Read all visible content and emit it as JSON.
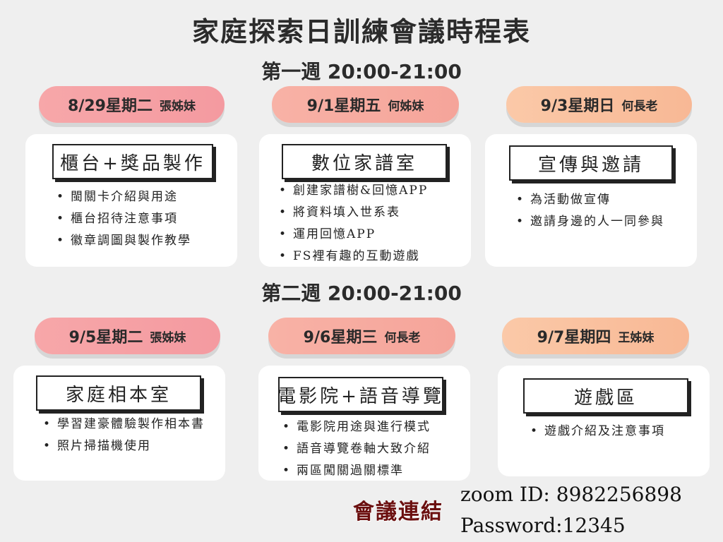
{
  "title": "家庭探索日訓練會議時程表",
  "weeks": [
    {
      "label": "第一週 20:00-21:00",
      "sessions": [
        {
          "date": "8/29星期二",
          "host": "張姊妹",
          "topic": "櫃台+獎品製作",
          "items": [
            "閩關卡介紹與用途",
            "櫃台招待注意事項",
            "徽章調圖與製作教學"
          ]
        },
        {
          "date": "9/1星期五",
          "host": "何姊妹",
          "topic": "數位家譜室",
          "items": [
            "創建家譜樹&回憶APP",
            "將資料填入世系表",
            "運用回憶APP",
            "FS裡有趣的互動遊戲"
          ]
        },
        {
          "date": "9/3星期日",
          "host": "何長老",
          "topic": "宣傳與邀請",
          "items": [
            "為活動做宣傳",
            "邀請身邊的人一同參與"
          ]
        }
      ]
    },
    {
      "label": "第二週 20:00-21:00",
      "sessions": [
        {
          "date": "9/5星期二",
          "host": "張姊妹",
          "topic": "家庭相本室",
          "items": [
            "學習建豪體驗製作相本書",
            "照片掃描機使用"
          ]
        },
        {
          "date": "9/6星期三",
          "host": "何長老",
          "topic": "電影院+語音導覽",
          "items": [
            "電影院用途與進行模式",
            "語音導覽卷軸大致介紹",
            "兩區闖關過關標準"
          ]
        },
        {
          "date": "9/7星期四",
          "host": "王姊妹",
          "topic": "遊戲區",
          "items": [
            "遊戲介紹及注意事項"
          ]
        }
      ]
    }
  ],
  "meeting": {
    "label": "會議連結",
    "zoom_id": "zoom ID: 8982256898",
    "password": "Password:12345"
  }
}
